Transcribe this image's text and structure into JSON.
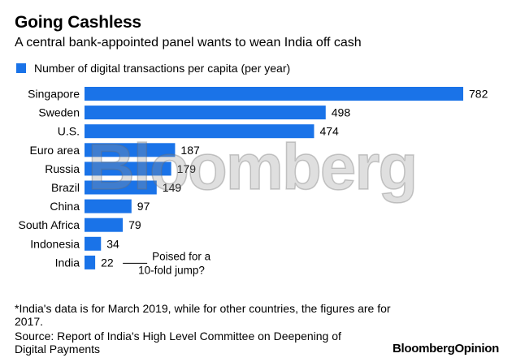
{
  "header": {
    "title": "Going Cashless",
    "subtitle": "A central bank-appointed panel wants to wean India off cash"
  },
  "legend": {
    "label": "Number of digital transactions per capita (per year)",
    "color": "#1a73e8"
  },
  "watermark": "Bloomberg",
  "annotation": {
    "line1": "Poised for a",
    "line2": "10-fold jump?"
  },
  "footer": {
    "note": "*India's data is for March 2019, while for other countries, the figures are for 2017.",
    "source": "Source: Report of India's High Level Committee on Deepening of Digital Payments",
    "brand_part1": "Bloomberg",
    "brand_part2": "Opinion"
  },
  "chart_data": {
    "type": "bar",
    "orientation": "horizontal",
    "title": "Going Cashless",
    "series": [
      {
        "name": "Number of digital transactions per capita (per year)",
        "color": "#1a73e8"
      }
    ],
    "categories": [
      "Singapore",
      "Sweden",
      "U.S.",
      "Euro area",
      "Russia",
      "Brazil",
      "China",
      "South Africa",
      "Indonesia",
      "India"
    ],
    "values": [
      782,
      498,
      474,
      187,
      179,
      149,
      97,
      79,
      34,
      22
    ],
    "xlim": [
      0,
      782
    ]
  }
}
